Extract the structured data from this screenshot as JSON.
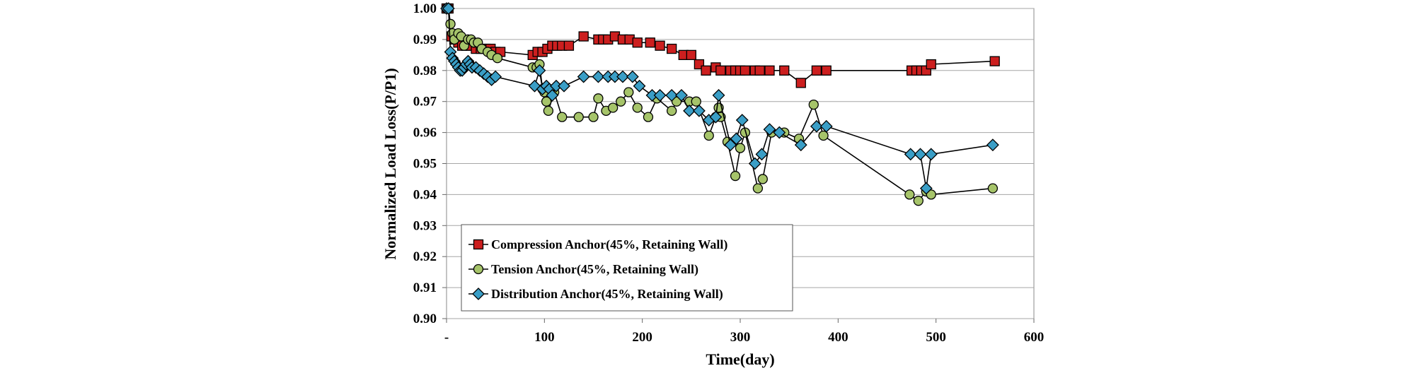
{
  "chart_data": {
    "type": "line",
    "title": "",
    "xlabel": "Time(day)",
    "ylabel": "Normalized Load Loss(P/P1)",
    "xlim": [
      0,
      600
    ],
    "ylim": [
      0.9,
      1.0
    ],
    "x_ticks": [
      0,
      100,
      200,
      300,
      400,
      500,
      600
    ],
    "x_tick_labels": [
      "-",
      "100",
      "200",
      "300",
      "400",
      "500",
      "600"
    ],
    "y_ticks": [
      0.9,
      0.91,
      0.92,
      0.93,
      0.94,
      0.95,
      0.96,
      0.97,
      0.98,
      0.99,
      1.0
    ],
    "y_tick_labels": [
      "0.90",
      "0.91",
      "0.92",
      "0.93",
      "0.94",
      "0.95",
      "0.96",
      "0.97",
      "0.98",
      "0.99",
      "1.00"
    ],
    "grid": "horizontal",
    "legend_position": "bottom-left",
    "series": [
      {
        "name": "Compression Anchor(45%, Retaining Wall)",
        "marker": "square",
        "color": "#cc1f1f",
        "points": [
          [
            0,
            1.0
          ],
          [
            2,
            1.0
          ],
          [
            5,
            0.991
          ],
          [
            8,
            0.99
          ],
          [
            12,
            0.989
          ],
          [
            16,
            0.988
          ],
          [
            20,
            0.988
          ],
          [
            25,
            0.988
          ],
          [
            30,
            0.987
          ],
          [
            35,
            0.987
          ],
          [
            40,
            0.987
          ],
          [
            45,
            0.987
          ],
          [
            50,
            0.986
          ],
          [
            55,
            0.986
          ],
          [
            88,
            0.985
          ],
          [
            93,
            0.986
          ],
          [
            98,
            0.986
          ],
          [
            103,
            0.987
          ],
          [
            108,
            0.988
          ],
          [
            113,
            0.988
          ],
          [
            118,
            0.988
          ],
          [
            125,
            0.988
          ],
          [
            140,
            0.991
          ],
          [
            155,
            0.99
          ],
          [
            160,
            0.99
          ],
          [
            165,
            0.99
          ],
          [
            172,
            0.991
          ],
          [
            180,
            0.99
          ],
          [
            187,
            0.99
          ],
          [
            195,
            0.989
          ],
          [
            208,
            0.989
          ],
          [
            218,
            0.988
          ],
          [
            230,
            0.987
          ],
          [
            242,
            0.985
          ],
          [
            250,
            0.985
          ],
          [
            258,
            0.982
          ],
          [
            265,
            0.98
          ],
          [
            275,
            0.981
          ],
          [
            280,
            0.98
          ],
          [
            290,
            0.98
          ],
          [
            295,
            0.98
          ],
          [
            300,
            0.98
          ],
          [
            305,
            0.98
          ],
          [
            315,
            0.98
          ],
          [
            320,
            0.98
          ],
          [
            330,
            0.98
          ],
          [
            345,
            0.98
          ],
          [
            362,
            0.976
          ],
          [
            378,
            0.98
          ],
          [
            388,
            0.98
          ],
          [
            475,
            0.98
          ],
          [
            480,
            0.98
          ],
          [
            485,
            0.98
          ],
          [
            490,
            0.98
          ],
          [
            495,
            0.982
          ],
          [
            560,
            0.983
          ]
        ]
      },
      {
        "name": "Tension Anchor(45%, Retaining Wall)",
        "marker": "circle",
        "color": "#a6c46a",
        "points": [
          [
            0,
            1.0
          ],
          [
            2,
            1.0
          ],
          [
            4,
            0.995
          ],
          [
            6,
            0.992
          ],
          [
            8,
            0.99
          ],
          [
            12,
            0.992
          ],
          [
            15,
            0.991
          ],
          [
            18,
            0.988
          ],
          [
            22,
            0.99
          ],
          [
            25,
            0.99
          ],
          [
            28,
            0.989
          ],
          [
            32,
            0.989
          ],
          [
            36,
            0.987
          ],
          [
            42,
            0.986
          ],
          [
            46,
            0.985
          ],
          [
            52,
            0.984
          ],
          [
            88,
            0.981
          ],
          [
            92,
            0.981
          ],
          [
            95,
            0.982
          ],
          [
            98,
            0.974
          ],
          [
            100,
            0.973
          ],
          [
            102,
            0.97
          ],
          [
            104,
            0.967
          ],
          [
            110,
            0.973
          ],
          [
            118,
            0.965
          ],
          [
            135,
            0.965
          ],
          [
            150,
            0.965
          ],
          [
            155,
            0.971
          ],
          [
            163,
            0.967
          ],
          [
            170,
            0.968
          ],
          [
            178,
            0.97
          ],
          [
            186,
            0.973
          ],
          [
            195,
            0.968
          ],
          [
            206,
            0.965
          ],
          [
            215,
            0.971
          ],
          [
            230,
            0.967
          ],
          [
            235,
            0.97
          ],
          [
            248,
            0.97
          ],
          [
            255,
            0.97
          ],
          [
            268,
            0.959
          ],
          [
            275,
            0.965
          ],
          [
            278,
            0.968
          ],
          [
            280,
            0.965
          ],
          [
            287,
            0.957
          ],
          [
            295,
            0.946
          ],
          [
            300,
            0.955
          ],
          [
            305,
            0.96
          ],
          [
            318,
            0.942
          ],
          [
            323,
            0.945
          ],
          [
            332,
            0.96
          ],
          [
            345,
            0.96
          ],
          [
            360,
            0.958
          ],
          [
            375,
            0.969
          ],
          [
            385,
            0.959
          ],
          [
            473,
            0.94
          ],
          [
            482,
            0.938
          ],
          [
            490,
            0.941
          ],
          [
            495,
            0.94
          ],
          [
            558,
            0.942
          ]
        ]
      },
      {
        "name": "Distribution Anchor(45%, Retaining Wall)",
        "marker": "diamond",
        "color": "#3a9ec6",
        "points": [
          [
            0,
            1.0
          ],
          [
            2,
            1.0
          ],
          [
            4,
            0.986
          ],
          [
            6,
            0.984
          ],
          [
            8,
            0.983
          ],
          [
            10,
            0.982
          ],
          [
            12,
            0.981
          ],
          [
            14,
            0.98
          ],
          [
            16,
            0.98
          ],
          [
            18,
            0.981
          ],
          [
            20,
            0.982
          ],
          [
            22,
            0.983
          ],
          [
            24,
            0.982
          ],
          [
            26,
            0.981
          ],
          [
            30,
            0.981
          ],
          [
            34,
            0.98
          ],
          [
            38,
            0.979
          ],
          [
            42,
            0.978
          ],
          [
            46,
            0.977
          ],
          [
            50,
            0.978
          ],
          [
            90,
            0.975
          ],
          [
            95,
            0.98
          ],
          [
            98,
            0.974
          ],
          [
            102,
            0.975
          ],
          [
            105,
            0.974
          ],
          [
            108,
            0.972
          ],
          [
            112,
            0.975
          ],
          [
            120,
            0.975
          ],
          [
            140,
            0.978
          ],
          [
            155,
            0.978
          ],
          [
            165,
            0.978
          ],
          [
            172,
            0.978
          ],
          [
            180,
            0.978
          ],
          [
            190,
            0.978
          ],
          [
            197,
            0.975
          ],
          [
            210,
            0.972
          ],
          [
            218,
            0.972
          ],
          [
            230,
            0.972
          ],
          [
            240,
            0.972
          ],
          [
            248,
            0.967
          ],
          [
            258,
            0.967
          ],
          [
            268,
            0.964
          ],
          [
            275,
            0.965
          ],
          [
            278,
            0.972
          ],
          [
            290,
            0.956
          ],
          [
            296,
            0.958
          ],
          [
            302,
            0.964
          ],
          [
            315,
            0.95
          ],
          [
            322,
            0.953
          ],
          [
            330,
            0.961
          ],
          [
            340,
            0.96
          ],
          [
            362,
            0.956
          ],
          [
            378,
            0.962
          ],
          [
            388,
            0.962
          ],
          [
            474,
            0.953
          ],
          [
            484,
            0.953
          ],
          [
            490,
            0.942
          ],
          [
            495,
            0.953
          ],
          [
            558,
            0.956
          ]
        ]
      }
    ]
  }
}
